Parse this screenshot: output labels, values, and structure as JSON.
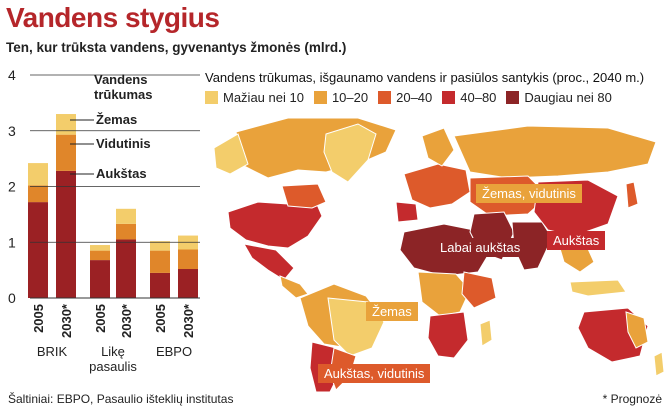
{
  "header": {
    "title": "Vandens stygius",
    "subtitle": "Ten, kur trūksta vandens, gyvenantys žmonės (mlrd.)"
  },
  "chart_data": {
    "type": "bar",
    "stacked": true,
    "ylim": [
      0,
      4
    ],
    "yticks": [
      "0",
      "1",
      "2",
      "3",
      "4"
    ],
    "legend_title": [
      "Vandens",
      "trūkumas"
    ],
    "series": [
      {
        "name": "Aukštas",
        "color": "#9b2124",
        "values": [
          1.72,
          2.28,
          0.68,
          1.05,
          0.45,
          0.52
        ]
      },
      {
        "name": "Vidutinis",
        "color": "#e0862a",
        "values": [
          0.3,
          0.65,
          0.17,
          0.28,
          0.4,
          0.35
        ]
      },
      {
        "name": "Žemas",
        "color": "#f3cd6b",
        "values": [
          0.4,
          0.37,
          0.1,
          0.27,
          0.17,
          0.25
        ]
      }
    ],
    "bars": [
      {
        "label": "2005"
      },
      {
        "label": "2030*"
      },
      {
        "label": "2005"
      },
      {
        "label": "2030*"
      },
      {
        "label": "2005"
      },
      {
        "label": "2030*"
      }
    ],
    "groups": [
      {
        "lines": [
          "BRIK"
        ]
      },
      {
        "lines": [
          "Likę",
          "pasaulis"
        ]
      },
      {
        "lines": [
          "EBPO"
        ]
      }
    ]
  },
  "map": {
    "title": "Vandens trūkumas, išgaunamo vandens ir pasiūlos santykis (proc., 2040 m.)",
    "legend": [
      {
        "label": "Mažiau nei 10",
        "color": "#f3cd6b"
      },
      {
        "label": "10–20",
        "color": "#e9a23b"
      },
      {
        "label": "20–40",
        "color": "#dd5a2b"
      },
      {
        "label": "40–80",
        "color": "#c42a2d"
      },
      {
        "label": "Daugiau nei 80",
        "color": "#8c2426"
      }
    ],
    "labels": {
      "low_mid_asia": "Žemas, vidutinis",
      "very_high": "Labai aukštas",
      "high_asia": "Aukštas",
      "low_sa": "Žemas",
      "high_mid_sa": "Aukštas, vidutinis"
    }
  },
  "footer": {
    "source": "Šaltiniai: EBPO, Pasaulio išteklių institutas",
    "forecast": "* Prognozė"
  }
}
